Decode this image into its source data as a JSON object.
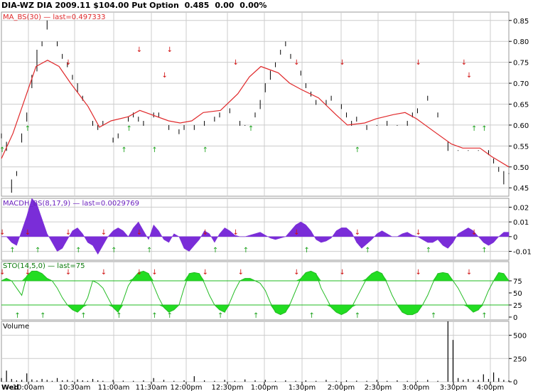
{
  "header": {
    "symbol": "DIA-WZ",
    "description": "DIA 2009.11 $104.00 Put Option",
    "last": "0.485",
    "change": "0.00",
    "change_pct": "0.00%"
  },
  "colors": {
    "background": "#ffffff",
    "grid": "#cccccc",
    "ma_line": "#e0282a",
    "macd_fill": "#7a2dd8",
    "macd_label": "#6a1fbe",
    "sto_fill": "#22dd22",
    "sto_label": "#0a7a0a",
    "sto_line": "#22bb22",
    "buy_arrow": "#1aa11a",
    "sell_arrow": "#d01010",
    "price_bar": "#000000",
    "volume_bar": "#000000"
  },
  "chart_data": [
    {
      "panel": "price",
      "type": "line",
      "label": "MA_BS(30) — last=0.497333",
      "ylim": [
        0.43,
        0.87
      ],
      "yticks": [
        "0.85",
        "0.80",
        "0.75",
        "0.70",
        "0.65",
        "0.60",
        "0.55",
        "0.50",
        "0.45"
      ],
      "x": [
        0,
        4,
        8,
        12,
        16,
        20,
        24,
        30,
        34,
        38,
        44,
        48,
        52,
        58,
        62,
        66,
        70,
        76,
        82,
        86,
        90,
        96,
        100,
        104,
        110,
        116,
        120,
        126,
        130,
        136,
        140,
        144,
        150,
        156,
        160,
        166,
        170,
        176
      ],
      "price_bars": [
        [
          0,
          0.58,
          0.57
        ],
        [
          1,
          0.56,
          0.54
        ],
        [
          2,
          0.47,
          0.44
        ],
        [
          3,
          0.49,
          0.48
        ],
        [
          4,
          0.58,
          0.56
        ],
        [
          5,
          0.63,
          0.61
        ],
        [
          6,
          0.72,
          0.69
        ],
        [
          7,
          0.78,
          0.73
        ],
        [
          8,
          0.8,
          0.79
        ],
        [
          9,
          0.85,
          0.83
        ],
        [
          11,
          0.8,
          0.79
        ],
        [
          12,
          0.77,
          0.76
        ],
        [
          13,
          0.75,
          0.74
        ],
        [
          14,
          0.72,
          0.71
        ],
        [
          15,
          0.7,
          0.68
        ],
        [
          16,
          0.67,
          0.66
        ],
        [
          18,
          0.61,
          0.6
        ],
        [
          19,
          0.6,
          0.59
        ],
        [
          20,
          0.61,
          0.6
        ],
        [
          22,
          0.57,
          0.56
        ],
        [
          23,
          0.58,
          0.57
        ],
        [
          25,
          0.62,
          0.61
        ],
        [
          26,
          0.63,
          0.62
        ],
        [
          27,
          0.62,
          0.61
        ],
        [
          28,
          0.61,
          0.6
        ],
        [
          30,
          0.63,
          0.62
        ],
        [
          31,
          0.63,
          0.62
        ],
        [
          33,
          0.6,
          0.59
        ],
        [
          35,
          0.59,
          0.58
        ],
        [
          36,
          0.6,
          0.59
        ],
        [
          38,
          0.6,
          0.59
        ],
        [
          40,
          0.61,
          0.6
        ],
        [
          42,
          0.62,
          0.61
        ],
        [
          43,
          0.63,
          0.62
        ],
        [
          45,
          0.64,
          0.63
        ],
        [
          47,
          0.61,
          0.6
        ],
        [
          48,
          0.6,
          0.6
        ],
        [
          50,
          0.63,
          0.62
        ],
        [
          51,
          0.66,
          0.64
        ],
        [
          52,
          0.7,
          0.68
        ],
        [
          53,
          0.73,
          0.71
        ],
        [
          54,
          0.75,
          0.74
        ],
        [
          55,
          0.78,
          0.77
        ],
        [
          56,
          0.8,
          0.79
        ],
        [
          57,
          0.77,
          0.76
        ],
        [
          59,
          0.73,
          0.72
        ],
        [
          60,
          0.7,
          0.69
        ],
        [
          61,
          0.68,
          0.67
        ],
        [
          62,
          0.66,
          0.65
        ],
        [
          64,
          0.66,
          0.65
        ],
        [
          65,
          0.67,
          0.66
        ],
        [
          67,
          0.65,
          0.64
        ],
        [
          68,
          0.63,
          0.62
        ],
        [
          69,
          0.61,
          0.6
        ],
        [
          70,
          0.62,
          0.61
        ],
        [
          72,
          0.6,
          0.59
        ],
        [
          74,
          0.6,
          0.6
        ],
        [
          76,
          0.61,
          0.6
        ],
        [
          78,
          0.6,
          0.6
        ],
        [
          80,
          0.61,
          0.6
        ],
        [
          81,
          0.63,
          0.62
        ],
        [
          82,
          0.64,
          0.63
        ],
        [
          84,
          0.67,
          0.66
        ],
        [
          86,
          0.63,
          0.62
        ],
        [
          88,
          0.56,
          0.54
        ],
        [
          90,
          0.54,
          0.54
        ],
        [
          92,
          0.54,
          0.54
        ],
        [
          94,
          0.54,
          0.54
        ],
        [
          96,
          0.54,
          0.53
        ],
        [
          97,
          0.52,
          0.51
        ],
        [
          98,
          0.5,
          0.49
        ],
        [
          99,
          0.49,
          0.46
        ],
        [
          100,
          0.485,
          0.485
        ]
      ],
      "ma_values": [
        0.52,
        0.58,
        0.66,
        0.74,
        0.755,
        0.74,
        0.7,
        0.645,
        0.595,
        0.61,
        0.62,
        0.635,
        0.625,
        0.61,
        0.605,
        0.61,
        0.63,
        0.635,
        0.675,
        0.715,
        0.74,
        0.725,
        0.7,
        0.685,
        0.665,
        0.625,
        0.6,
        0.605,
        0.615,
        0.625,
        0.63,
        0.615,
        0.585,
        0.555,
        0.545,
        0.545,
        0.525,
        0.5
      ],
      "sell_arrows": [
        13,
        27,
        32,
        33,
        46,
        58,
        67,
        82,
        91,
        92
      ],
      "buy_arrows": [
        0,
        5,
        24,
        25,
        30,
        40,
        49,
        70,
        93,
        95
      ]
    },
    {
      "panel": "macdh",
      "type": "area",
      "label": "MACDH_BS(8,17,9) — last=0.0029769",
      "ylim": [
        -0.016,
        0.026
      ],
      "yticks": [
        "0.02",
        "0.01",
        "0",
        "-0.01"
      ],
      "values": [
        0.0,
        0.0,
        -0.004,
        -0.006,
        0.004,
        0.014,
        0.026,
        0.022,
        0.012,
        0.002,
        -0.004,
        -0.01,
        -0.008,
        -0.002,
        0.004,
        0.006,
        0.002,
        -0.004,
        -0.006,
        -0.012,
        -0.006,
        0.0,
        0.004,
        0.006,
        0.004,
        0.0,
        0.006,
        0.01,
        0.004,
        -0.002,
        0.008,
        0.004,
        -0.002,
        -0.004,
        0.002,
        0.0,
        -0.008,
        -0.01,
        -0.006,
        -0.002,
        0.004,
        0.002,
        -0.004,
        0.002,
        0.006,
        0.004,
        0.001,
        0.0,
        0.0,
        0.001,
        0.002,
        0.003,
        0.001,
        -0.001,
        -0.002,
        -0.001,
        0.0,
        0.004,
        0.008,
        0.01,
        0.008,
        0.004,
        -0.002,
        -0.004,
        -0.003,
        -0.001,
        0.004,
        0.006,
        0.006,
        0.003,
        -0.004,
        -0.008,
        -0.005,
        -0.002,
        0.002,
        0.004,
        0.002,
        0.0,
        0.0,
        0.002,
        0.003,
        0.001,
        0.0,
        -0.002,
        -0.004,
        -0.004,
        -0.002,
        -0.006,
        -0.008,
        -0.004,
        0.002,
        0.004,
        0.006,
        0.004,
        0.0,
        -0.004,
        -0.006,
        -0.004,
        0.0,
        0.003,
        0.003
      ]
    },
    {
      "panel": "stochastic",
      "type": "area",
      "label": "STO(14,5,0) — last=75",
      "ylim": [
        0,
        100
      ],
      "yticks": [
        "75",
        "50",
        "25",
        "0"
      ],
      "overbought": 75,
      "oversold": 25,
      "values": [
        75,
        80,
        75,
        60,
        45,
        85,
        95,
        95,
        90,
        80,
        75,
        60,
        40,
        25,
        15,
        10,
        20,
        40,
        75,
        70,
        60,
        40,
        20,
        10,
        35,
        65,
        80,
        92,
        95,
        90,
        65,
        40,
        20,
        10,
        15,
        25,
        60,
        90,
        92,
        90,
        70,
        45,
        25,
        15,
        10,
        30,
        55,
        75,
        80,
        80,
        75,
        70,
        55,
        30,
        10,
        5,
        10,
        30,
        55,
        80,
        92,
        95,
        90,
        60,
        40,
        20,
        10,
        5,
        10,
        20,
        40,
        60,
        80,
        90,
        95,
        90,
        70,
        45,
        25,
        10,
        5,
        5,
        10,
        25,
        45,
        70,
        90,
        92,
        90,
        75,
        60,
        40,
        20,
        10,
        15,
        30,
        55,
        75,
        92,
        90,
        75
      ]
    },
    {
      "panel": "volume",
      "type": "bar",
      "label": "Volume",
      "ylim": [
        0,
        650
      ],
      "yticks": [
        "500",
        "250",
        "0"
      ],
      "values": [
        [
          0,
          40
        ],
        [
          1,
          120
        ],
        [
          2,
          30
        ],
        [
          3,
          15
        ],
        [
          4,
          20
        ],
        [
          5,
          90
        ],
        [
          6,
          25
        ],
        [
          7,
          15
        ],
        [
          8,
          30
        ],
        [
          9,
          20
        ],
        [
          10,
          10
        ],
        [
          11,
          40
        ],
        [
          12,
          15
        ],
        [
          13,
          20
        ],
        [
          14,
          10
        ],
        [
          15,
          25
        ],
        [
          16,
          15
        ],
        [
          17,
          10
        ],
        [
          18,
          30
        ],
        [
          19,
          15
        ],
        [
          20,
          10
        ],
        [
          22,
          20
        ],
        [
          24,
          12
        ],
        [
          26,
          10
        ],
        [
          28,
          15
        ],
        [
          30,
          40
        ],
        [
          32,
          20
        ],
        [
          34,
          10
        ],
        [
          36,
          15
        ],
        [
          38,
          60
        ],
        [
          40,
          15
        ],
        [
          42,
          10
        ],
        [
          44,
          20
        ],
        [
          46,
          10
        ],
        [
          48,
          25
        ],
        [
          50,
          15
        ],
        [
          52,
          20
        ],
        [
          54,
          10
        ],
        [
          56,
          15
        ],
        [
          58,
          10
        ],
        [
          60,
          15
        ],
        [
          62,
          10
        ],
        [
          64,
          20
        ],
        [
          66,
          10
        ],
        [
          68,
          15
        ],
        [
          70,
          12
        ],
        [
          72,
          10
        ],
        [
          74,
          20
        ],
        [
          76,
          10
        ],
        [
          78,
          15
        ],
        [
          80,
          10
        ],
        [
          82,
          10
        ],
        [
          84,
          20
        ],
        [
          86,
          10
        ],
        [
          88,
          650
        ],
        [
          89,
          450
        ],
        [
          90,
          40
        ],
        [
          91,
          20
        ],
        [
          92,
          30
        ],
        [
          93,
          20
        ],
        [
          94,
          20
        ],
        [
          95,
          80
        ],
        [
          96,
          30
        ],
        [
          97,
          100
        ],
        [
          98,
          40
        ],
        [
          99,
          20
        ],
        [
          100,
          15
        ]
      ]
    }
  ],
  "time_axis": {
    "start_label": "Wed",
    "labels": [
      "10:00am",
      "10:30am",
      "11:00am",
      "11:30am",
      "12:00pm",
      "12:30pm",
      "1:00pm",
      "1:30pm",
      "2:00pm",
      "2:30pm",
      "3:00pm",
      "3:30pm",
      "4:00pm"
    ]
  }
}
